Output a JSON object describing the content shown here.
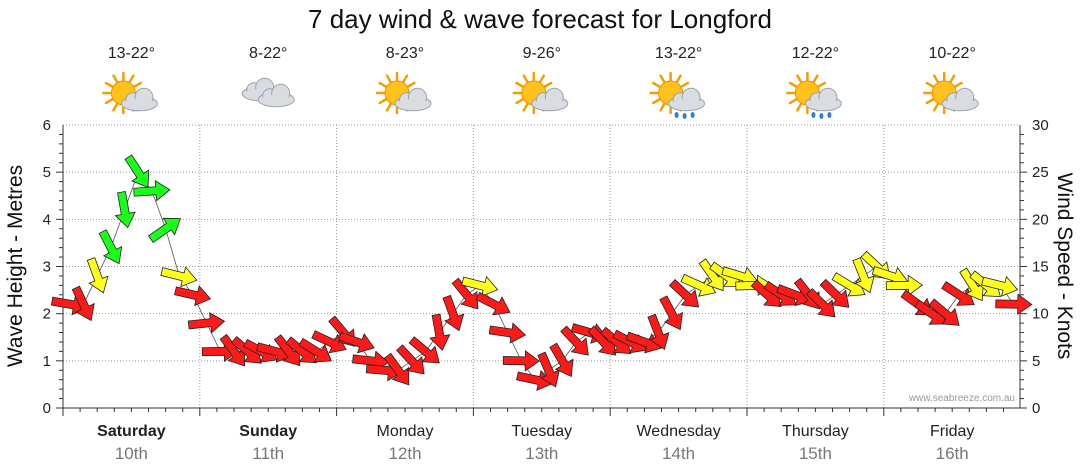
{
  "chart_data": {
    "type": "line",
    "title": "7 day wind & wave forecast for Longford",
    "ylabel_left": "Wave Height - Metres",
    "ylabel_right": "Wind Speed - Knots",
    "ylim_left": [
      0,
      6
    ],
    "ylim_right": [
      0,
      30
    ],
    "yticks_left": [
      "0",
      "1",
      "2",
      "3",
      "4",
      "5",
      "6"
    ],
    "yticks_right": [
      "0",
      "5",
      "10",
      "15",
      "20",
      "25",
      "30"
    ],
    "credit": "www.seabreeze.com.au",
    "colors": {
      "red": "#ff1a1a",
      "yellow": "#ffff1a",
      "green": "#1aff1a",
      "grid": "#999999",
      "axis": "#333333"
    },
    "days": [
      {
        "name": "Saturday",
        "date": "10th",
        "temp": "13-22°",
        "icon": "sun-cloud-icon",
        "bold": true
      },
      {
        "name": "Sunday",
        "date": "11th",
        "temp": "8-22°",
        "icon": "cloud-icon",
        "bold": true
      },
      {
        "name": "Monday",
        "date": "12th",
        "temp": "8-23°",
        "icon": "sun-cloud-icon",
        "bold": false
      },
      {
        "name": "Tuesday",
        "date": "13th",
        "temp": "9-26°",
        "icon": "sun-cloud-icon",
        "bold": false
      },
      {
        "name": "Wednesday",
        "date": "14th",
        "temp": "13-22°",
        "icon": "sun-cloud-rain-icon",
        "bold": false
      },
      {
        "name": "Thursday",
        "date": "15th",
        "temp": "12-22°",
        "icon": "sun-cloud-rain-icon",
        "bold": false
      },
      {
        "name": "Friday",
        "date": "16th",
        "temp": "10-22°",
        "icon": "sun-cloud-icon",
        "bold": false
      }
    ],
    "series": [
      {
        "name": "Wind Speed (knots)",
        "time_days": [
          0.0,
          0.1,
          0.2,
          0.3,
          0.4,
          0.5,
          0.6,
          0.7,
          0.8,
          0.9,
          1.0,
          1.1,
          1.2,
          1.3,
          1.4,
          1.5,
          1.6,
          1.7,
          1.8,
          1.9,
          2.0,
          2.1,
          2.2,
          2.3,
          2.4,
          2.5,
          2.6,
          2.7,
          2.8,
          2.9,
          3.0,
          3.1,
          3.2,
          3.3,
          3.4,
          3.5,
          3.6,
          3.7,
          3.8,
          3.9,
          4.0,
          4.1,
          4.2,
          4.3,
          4.4,
          4.5,
          4.6,
          4.7,
          4.8,
          4.9,
          5.0,
          5.1,
          5.2,
          5.3,
          5.4,
          5.5,
          5.6,
          5.7,
          5.8,
          5.9,
          6.0,
          6.1,
          6.2,
          6.3,
          6.4,
          6.5,
          6.6,
          6.7,
          6.8,
          6.9
        ],
        "values": [
          11,
          11,
          14,
          17,
          21,
          25,
          23,
          19,
          14,
          12,
          9,
          6,
          6,
          6,
          6,
          6,
          6,
          6,
          6,
          7,
          8,
          7,
          5,
          4,
          4,
          5,
          6,
          8,
          10,
          12,
          13,
          11,
          8,
          5,
          3,
          4,
          5,
          7,
          8,
          7,
          7,
          7,
          7,
          8,
          10,
          12,
          13,
          14,
          14,
          14,
          13,
          12,
          12,
          12,
          12,
          11,
          12,
          13,
          14,
          15,
          14,
          13,
          11,
          10,
          10,
          12,
          13,
          13,
          13,
          11
        ]
      }
    ],
    "wind_color_categories": [
      "red",
      "yellow",
      "green"
    ]
  }
}
